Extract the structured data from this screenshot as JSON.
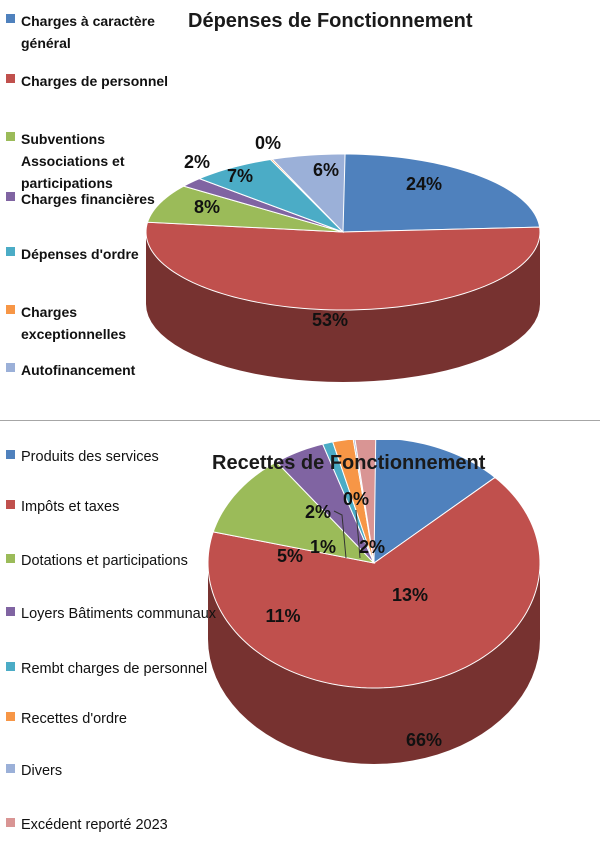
{
  "charts": [
    {
      "title": "Dépenses de Fonctionnement",
      "legend": [
        {
          "label": "Charges à caractère général",
          "color": "#4f81bd"
        },
        {
          "label": "Charges de personnel",
          "color": "#c0504d"
        },
        {
          "label": "Subventions Associations et participations",
          "color": "#9bbb59"
        },
        {
          "label": "Charges financières",
          "color": "#8064a2"
        },
        {
          "label": "Dépenses d'ordre",
          "color": "#4bacc6"
        },
        {
          "label": "Charges exceptionnelles",
          "color": "#f79646"
        },
        {
          "label": "Autofinancement",
          "color": "#9bb0d8"
        }
      ]
    },
    {
      "title": "Recettes de Fonctionnement",
      "legend": [
        {
          "label": "Produits des services",
          "color": "#4f81bd"
        },
        {
          "label": "Impôts et taxes",
          "color": "#c0504d"
        },
        {
          "label": "Dotations et participations",
          "color": "#9bbb59"
        },
        {
          "label": "Loyers Bâtiments communaux",
          "color": "#8064a2"
        },
        {
          "label": "Rembt charges de personnel",
          "color": "#4bacc6"
        },
        {
          "label": "Recettes d'ordre",
          "color": "#f79646"
        },
        {
          "label": "Divers",
          "color": "#9bb0d8"
        },
        {
          "label": "Excédent reporté 2023",
          "color": "#d99594"
        }
      ]
    }
  ],
  "chart_data": [
    {
      "type": "pie",
      "title": "Dépenses de Fonctionnement",
      "categories": [
        "Charges à caractère général",
        "Charges de personnel",
        "Subventions Associations et participations",
        "Charges financières",
        "Dépenses d'ordre",
        "Charges exceptionnelles",
        "Autofinancement"
      ],
      "values": [
        24,
        53,
        8,
        2,
        7,
        0,
        6
      ],
      "labels": [
        "24%",
        "53%",
        "8%",
        "2%",
        "7%",
        "0%",
        "6%"
      ],
      "legend_position": "left"
    },
    {
      "type": "pie",
      "title": "Recettes de Fonctionnement",
      "categories": [
        "Produits des services",
        "Impôts et taxes",
        "Dotations et participations",
        "Loyers Bâtiments communaux",
        "Rembt charges de personnel",
        "Recettes d'ordre",
        "Divers",
        "Excédent reporté 2023"
      ],
      "values": [
        13,
        66,
        11,
        5,
        1,
        2,
        0,
        2
      ],
      "labels": [
        "13%",
        "66%",
        "11%",
        "5%",
        "1%",
        "2%",
        "0%",
        "2%"
      ],
      "legend_position": "left"
    }
  ]
}
